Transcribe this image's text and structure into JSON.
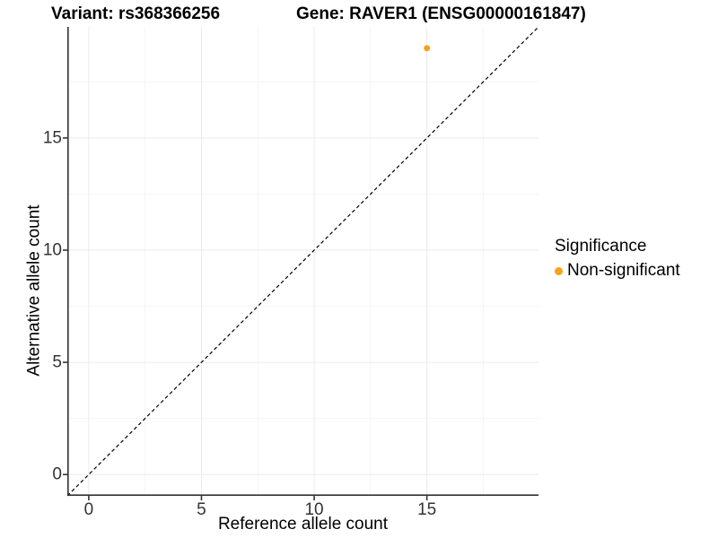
{
  "header": {
    "variant_title": "Variant: rs368366256",
    "gene_title": "Gene: RAVER1 (ENSG00000161847)"
  },
  "legend": {
    "title": "Significance",
    "items": [
      {
        "label": "Non-significant",
        "color": "#FAA21B"
      }
    ]
  },
  "chart_data": {
    "type": "scatter",
    "title": "Variant: rs368366256 / Gene: RAVER1 (ENSG00000161847)",
    "xlabel": "Reference allele count",
    "ylabel": "Alternative allele count",
    "xlim": [
      -0.95,
      19.95
    ],
    "ylim": [
      -0.95,
      19.95
    ],
    "x_ticks": [
      0,
      5,
      10,
      15
    ],
    "y_ticks": [
      0,
      5,
      10,
      15
    ],
    "x_minor_ticks": [
      2.5,
      7.5,
      12.5,
      17.5
    ],
    "y_minor_ticks": [
      2.5,
      7.5,
      12.5,
      17.5
    ],
    "grid": "major-and-minor",
    "legend_position": "right",
    "series": [
      {
        "name": "Non-significant",
        "color": "#FAA21B",
        "points": [
          {
            "x": 15,
            "y": 19
          }
        ]
      }
    ],
    "reference_line": {
      "kind": "identity y=x",
      "style": "dashed",
      "color": "#000000",
      "from": [
        -0.95,
        -0.95
      ],
      "to": [
        19.95,
        19.95
      ]
    }
  },
  "style": {
    "point_color": "#FAA21B",
    "point_radius": 3.5,
    "grid_major_color": "#EBEBEB",
    "grid_minor_color": "#F5F5F5",
    "axis_line_color": "#333333",
    "tick_label_color": "#333333",
    "background": "#FFFFFF"
  }
}
